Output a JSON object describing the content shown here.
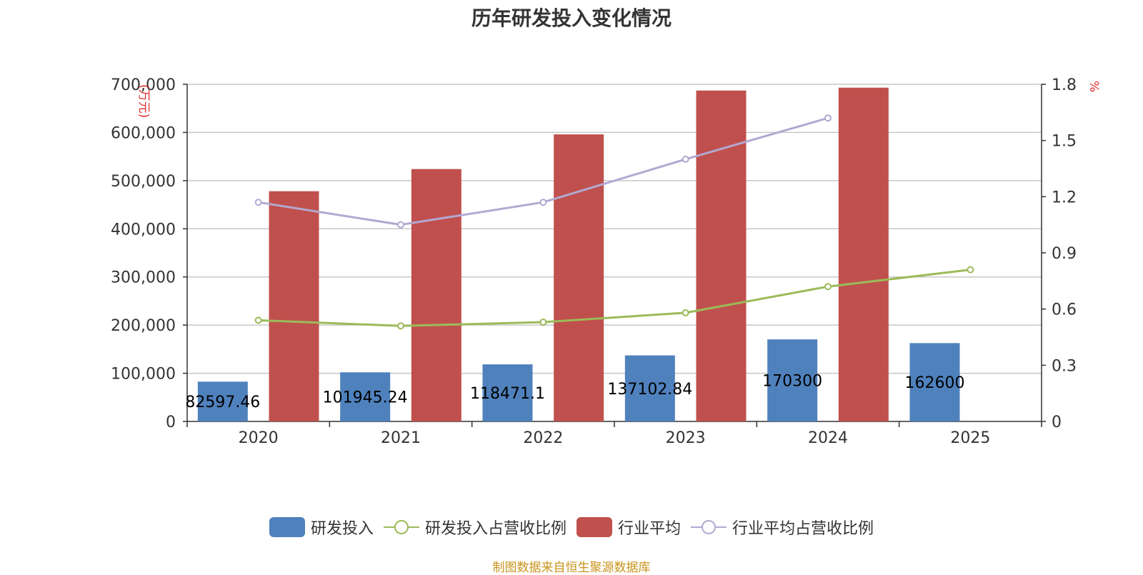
{
  "chart_data": {
    "type": "bar",
    "title": "历年研发投入变化情况",
    "categories": [
      "2020",
      "2021",
      "2022",
      "2023",
      "2024",
      "2025"
    ],
    "y_left": {
      "unit_label": "(万元)",
      "ticks": [
        "0",
        "100,000",
        "200,000",
        "300,000",
        "400,000",
        "500,000",
        "600,000",
        "700,000"
      ],
      "ylim": [
        0,
        700000
      ]
    },
    "y_right": {
      "unit_label": "%",
      "ticks": [
        "0",
        "0.3",
        "0.6",
        "0.9",
        "1.2",
        "1.5",
        "1.8"
      ],
      "ylim": [
        0,
        1.8
      ]
    },
    "series": [
      {
        "name": "研发投入",
        "type": "bar",
        "axis": "left",
        "color": "#4f81bd",
        "values": [
          82597.46,
          101945.24,
          118471.1,
          137102.84,
          170300,
          162600
        ],
        "labels": [
          "82597.46",
          "101945.24",
          "118471.1",
          "137102.84",
          "170300",
          "162600"
        ]
      },
      {
        "name": "研发投入占营收比例",
        "type": "line",
        "axis": "right",
        "color": "#9bbb59",
        "values": [
          0.54,
          0.51,
          0.53,
          0.58,
          0.72,
          0.81
        ]
      },
      {
        "name": "行业平均",
        "type": "bar",
        "axis": "left",
        "color": "#c0504d",
        "values": [
          478000,
          524000,
          596000,
          687000,
          693000,
          null
        ]
      },
      {
        "name": "行业平均占营收比例",
        "type": "line",
        "axis": "right",
        "color": "#b3a8d1",
        "values": [
          1.17,
          1.05,
          1.17,
          1.4,
          1.62,
          null
        ]
      }
    ],
    "grid": true,
    "legend_position": "bottom"
  },
  "source_note": "制图数据来自恒生聚源数据库"
}
